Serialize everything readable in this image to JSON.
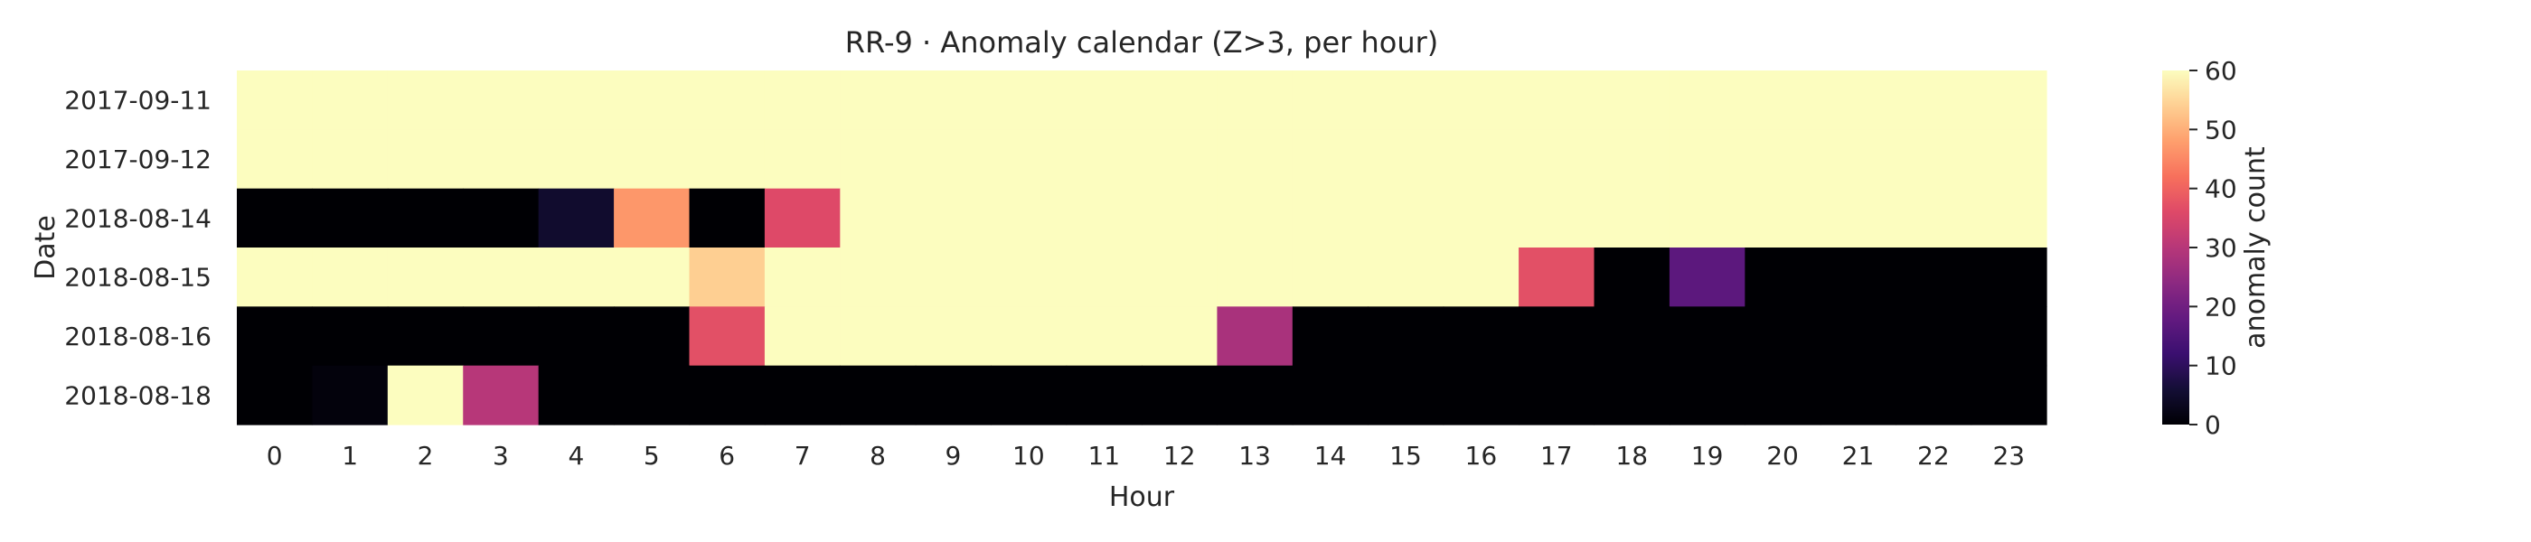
{
  "chart_data": {
    "type": "heatmap",
    "title": "RR-9 · Anomaly calendar (Z>3, per hour)",
    "xlabel": "Hour",
    "ylabel": "Date",
    "x": [
      "0",
      "1",
      "2",
      "3",
      "4",
      "5",
      "6",
      "7",
      "8",
      "9",
      "10",
      "11",
      "12",
      "13",
      "14",
      "15",
      "16",
      "17",
      "18",
      "19",
      "20",
      "21",
      "22",
      "23"
    ],
    "y": [
      "2017-09-11",
      "2017-09-12",
      "2018-08-14",
      "2018-08-15",
      "2018-08-16",
      "2018-08-18"
    ],
    "values": [
      [
        60,
        60,
        60,
        60,
        60,
        60,
        60,
        60,
        60,
        60,
        60,
        60,
        60,
        60,
        60,
        60,
        60,
        60,
        60,
        60,
        60,
        60,
        60,
        60
      ],
      [
        60,
        60,
        60,
        60,
        60,
        60,
        60,
        60,
        60,
        60,
        60,
        60,
        60,
        60,
        60,
        60,
        60,
        60,
        60,
        60,
        60,
        60,
        60,
        60
      ],
      [
        0,
        0,
        0,
        0,
        5,
        47,
        0,
        36,
        60,
        60,
        60,
        60,
        60,
        60,
        60,
        60,
        60,
        60,
        60,
        60,
        60,
        60,
        60,
        60
      ],
      [
        60,
        60,
        60,
        60,
        60,
        60,
        54,
        60,
        60,
        60,
        60,
        60,
        60,
        60,
        60,
        60,
        60,
        37,
        0,
        17,
        0,
        0,
        0,
        0
      ],
      [
        0,
        0,
        0,
        0,
        0,
        0,
        37,
        60,
        60,
        60,
        60,
        60,
        60,
        28,
        0,
        0,
        0,
        0,
        0,
        0,
        0,
        0,
        0,
        0
      ],
      [
        0,
        1,
        60,
        30,
        0,
        0,
        0,
        0,
        0,
        0,
        0,
        0,
        0,
        0,
        0,
        0,
        0,
        0,
        0,
        0,
        0,
        0,
        0,
        0
      ]
    ],
    "colorbar": {
      "label": "anomaly count",
      "min": 0,
      "max": 60,
      "ticks": [
        "0",
        "10",
        "20",
        "30",
        "40",
        "50",
        "60"
      ],
      "colormap": "magma"
    },
    "grid": false
  }
}
